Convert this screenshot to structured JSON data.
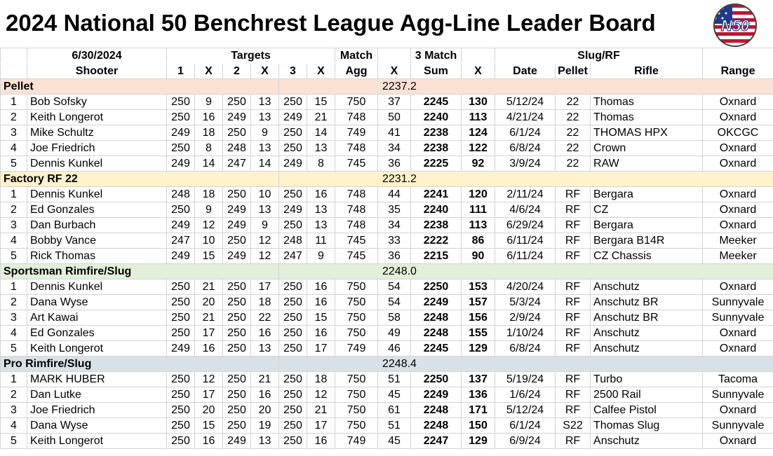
{
  "title": "2024 National 50 Benchrest League Agg-Line Leader Board",
  "logo_text": "N50",
  "header": {
    "date": "6/30/2024",
    "targets": "Targets",
    "match": "Match",
    "three_match": "3 Match",
    "slug_rf": "Slug/RF",
    "columns": [
      "Shooter",
      "1",
      "X",
      "2",
      "X",
      "3",
      "X",
      "Agg",
      "X",
      "Sum",
      "X",
      "Date",
      "Pellet",
      "Rifle",
      "Range"
    ]
  },
  "categories": [
    {
      "name": "Pellet",
      "value": "2237.2",
      "style": "pellet",
      "rows": [
        {
          "rank": "1",
          "shooter": "Bob Sofsky",
          "t1": "250",
          "x1": "9",
          "t2": "250",
          "x2": "13",
          "t3": "250",
          "x3": "15",
          "agg": "750",
          "aggx": "37",
          "sum": "2245",
          "sumx": "130",
          "date": "5/12/24",
          "pellet": "22",
          "rifle": "Thomas",
          "range": "Oxnard"
        },
        {
          "rank": "2",
          "shooter": "Keith Longerot",
          "t1": "250",
          "x1": "16",
          "t2": "249",
          "x2": "13",
          "t3": "249",
          "x3": "21",
          "agg": "748",
          "aggx": "50",
          "sum": "2240",
          "sumx": "113",
          "date": "4/21/24",
          "pellet": "22",
          "rifle": "Thomas",
          "range": "Oxnard"
        },
        {
          "rank": "3",
          "shooter": "Mike Schultz",
          "t1": "249",
          "x1": "18",
          "t2": "250",
          "x2": "9",
          "t3": "250",
          "x3": "14",
          "agg": "749",
          "aggx": "41",
          "sum": "2238",
          "sumx": "124",
          "date": "6/1/24",
          "pellet": "22",
          "rifle": "THOMAS HPX",
          "range": "OKCGC"
        },
        {
          "rank": "4",
          "shooter": "Joe Friedrich",
          "t1": "250",
          "x1": "8",
          "t2": "248",
          "x2": "13",
          "t3": "250",
          "x3": "13",
          "agg": "748",
          "aggx": "34",
          "sum": "2238",
          "sumx": "122",
          "date": "6/8/24",
          "pellet": "22",
          "rifle": "Crown",
          "range": "Oxnard"
        },
        {
          "rank": "5",
          "shooter": "Dennis Kunkel",
          "t1": "249",
          "x1": "14",
          "t2": "247",
          "x2": "14",
          "t3": "249",
          "x3": "8",
          "agg": "745",
          "aggx": "36",
          "sum": "2225",
          "sumx": "92",
          "date": "3/9/24",
          "pellet": "22",
          "rifle": "RAW",
          "range": "Oxnard"
        }
      ]
    },
    {
      "name": "Factory RF 22",
      "value": "2231.2",
      "style": "factory",
      "rows": [
        {
          "rank": "1",
          "shooter": "Dennis Kunkel",
          "t1": "248",
          "x1": "18",
          "t2": "250",
          "x2": "10",
          "t3": "250",
          "x3": "16",
          "agg": "748",
          "aggx": "44",
          "sum": "2241",
          "sumx": "120",
          "date": "2/11/24",
          "pellet": "RF",
          "rifle": "Bergara",
          "range": "Oxnard"
        },
        {
          "rank": "2",
          "shooter": "Ed Gonzales",
          "t1": "250",
          "x1": "9",
          "t2": "249",
          "x2": "13",
          "t3": "249",
          "x3": "13",
          "agg": "748",
          "aggx": "35",
          "sum": "2240",
          "sumx": "111",
          "date": "4/6/24",
          "pellet": "RF",
          "rifle": "CZ",
          "range": "Oxnard"
        },
        {
          "rank": "3",
          "shooter": "Dan Burbach",
          "t1": "249",
          "x1": "12",
          "t2": "249",
          "x2": "9",
          "t3": "250",
          "x3": "13",
          "agg": "748",
          "aggx": "34",
          "sum": "2238",
          "sumx": "113",
          "date": "6/29/24",
          "pellet": "RF",
          "rifle": "Bergara",
          "range": "Oxnard"
        },
        {
          "rank": "4",
          "shooter": "Bobby Vance",
          "t1": "247",
          "x1": "10",
          "t2": "250",
          "x2": "12",
          "t3": "248",
          "x3": "11",
          "agg": "745",
          "aggx": "33",
          "sum": "2222",
          "sumx": "86",
          "date": "6/11/24",
          "pellet": "RF",
          "rifle": "Bergara B14R",
          "range": "Meeker"
        },
        {
          "rank": "5",
          "shooter": "Rick Thomas",
          "t1": "249",
          "x1": "15",
          "t2": "249",
          "x2": "12",
          "t3": "247",
          "x3": "9",
          "agg": "745",
          "aggx": "36",
          "sum": "2215",
          "sumx": "90",
          "date": "6/11/24",
          "pellet": "RF",
          "rifle": "CZ Chassis",
          "range": "Meeker"
        }
      ]
    },
    {
      "name": "Sportsman Rimfire/Slug",
      "value": "2248.0",
      "style": "sportsman",
      "rows": [
        {
          "rank": "1",
          "shooter": "Dennis Kunkel",
          "t1": "250",
          "x1": "21",
          "t2": "250",
          "x2": "17",
          "t3": "250",
          "x3": "16",
          "agg": "750",
          "aggx": "54",
          "sum": "2250",
          "sumx": "153",
          "date": "4/20/24",
          "pellet": "RF",
          "rifle": "Anschutz",
          "range": "Oxnard"
        },
        {
          "rank": "2",
          "shooter": "Dana Wyse",
          "t1": "250",
          "x1": "20",
          "t2": "250",
          "x2": "18",
          "t3": "250",
          "x3": "16",
          "agg": "750",
          "aggx": "54",
          "sum": "2249",
          "sumx": "157",
          "date": "5/3/24",
          "pellet": "RF",
          "rifle": "Anschutz BR",
          "range": "Sunnyvale"
        },
        {
          "rank": "3",
          "shooter": "Art Kawai",
          "t1": "250",
          "x1": "21",
          "t2": "250",
          "x2": "22",
          "t3": "250",
          "x3": "15",
          "agg": "750",
          "aggx": "58",
          "sum": "2248",
          "sumx": "156",
          "date": "2/9/24",
          "pellet": "RF",
          "rifle": "Anschutz BR",
          "range": "Sunnyvale"
        },
        {
          "rank": "4",
          "shooter": "Ed Gonzales",
          "t1": "250",
          "x1": "17",
          "t2": "250",
          "x2": "16",
          "t3": "250",
          "x3": "16",
          "agg": "750",
          "aggx": "49",
          "sum": "2248",
          "sumx": "155",
          "date": "1/10/24",
          "pellet": "RF",
          "rifle": "Anschutz",
          "range": "Oxnard"
        },
        {
          "rank": "5",
          "shooter": "Keith Longerot",
          "t1": "249",
          "x1": "16",
          "t2": "250",
          "x2": "13",
          "t3": "250",
          "x3": "17",
          "agg": "749",
          "aggx": "46",
          "sum": "2245",
          "sumx": "129",
          "date": "6/8/24",
          "pellet": "RF",
          "rifle": "Anschutz",
          "range": "Oxnard"
        }
      ]
    },
    {
      "name": "Pro Rimfire/Slug",
      "value": "2248.4",
      "style": "pro",
      "rows": [
        {
          "rank": "1",
          "shooter": "MARK HUBER",
          "t1": "250",
          "x1": "12",
          "t2": "250",
          "x2": "21",
          "t3": "250",
          "x3": "18",
          "agg": "750",
          "aggx": "51",
          "sum": "2250",
          "sumx": "137",
          "date": "5/19/24",
          "pellet": "RF",
          "rifle": "Turbo",
          "range": "Tacoma"
        },
        {
          "rank": "2",
          "shooter": "Dan Lutke",
          "t1": "250",
          "x1": "17",
          "t2": "250",
          "x2": "16",
          "t3": "250",
          "x3": "12",
          "agg": "750",
          "aggx": "45",
          "sum": "2249",
          "sumx": "136",
          "date": "1/6/24",
          "pellet": "RF",
          "rifle": "2500 Rail",
          "range": "Sunnyvale"
        },
        {
          "rank": "3",
          "shooter": "Joe Friedrich",
          "t1": "250",
          "x1": "20",
          "t2": "250",
          "x2": "20",
          "t3": "250",
          "x3": "21",
          "agg": "750",
          "aggx": "61",
          "sum": "2248",
          "sumx": "171",
          "date": "5/12/24",
          "pellet": "RF",
          "rifle": "Calfee Pistol",
          "range": "Oxnard"
        },
        {
          "rank": "4",
          "shooter": "Dana Wyse",
          "t1": "250",
          "x1": "15",
          "t2": "250",
          "x2": "19",
          "t3": "250",
          "x3": "17",
          "agg": "750",
          "aggx": "51",
          "sum": "2248",
          "sumx": "150",
          "date": "6/1/24",
          "pellet": "S22",
          "rifle": "Thomas Slug",
          "range": "Sunnyvale"
        },
        {
          "rank": "5",
          "shooter": "Keith Longerot",
          "t1": "250",
          "x1": "16",
          "t2": "249",
          "x2": "13",
          "t3": "250",
          "x3": "16",
          "agg": "749",
          "aggx": "45",
          "sum": "2247",
          "sumx": "129",
          "date": "6/9/24",
          "pellet": "RF",
          "rifle": "Anschutz",
          "range": "Oxnard"
        }
      ]
    }
  ]
}
